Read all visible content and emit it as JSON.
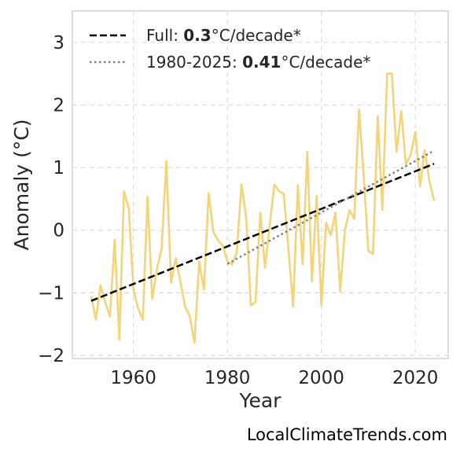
{
  "chart_data": {
    "type": "line",
    "title": "",
    "xlabel": "Year",
    "ylabel": "Anomaly (°C)",
    "xlim": [
      1947,
      2027
    ],
    "ylim": [
      -2.05,
      3.5
    ],
    "x_ticks": [
      1960,
      1980,
      2000,
      2020
    ],
    "y_ticks": [
      -2,
      -1,
      0,
      1,
      2,
      3
    ],
    "x_tick_labels": [
      "1960",
      "1980",
      "2000",
      "2020"
    ],
    "y_tick_labels": [
      "−2",
      "−1",
      "0",
      "1",
      "2",
      "3"
    ],
    "grid": true,
    "legend_position": "top-left",
    "credit": "LocalClimateTrends.com",
    "series": [
      {
        "role": "annual anomaly",
        "style": "solid",
        "color": "#f2d479",
        "x": [
          1951,
          1952,
          1953,
          1954,
          1955,
          1956,
          1957,
          1958,
          1959,
          1960,
          1961,
          1962,
          1963,
          1964,
          1965,
          1966,
          1967,
          1968,
          1969,
          1970,
          1971,
          1972,
          1973,
          1974,
          1975,
          1976,
          1977,
          1978,
          1979,
          1980,
          1981,
          1982,
          1983,
          1984,
          1985,
          1986,
          1987,
          1988,
          1989,
          1990,
          1991,
          1992,
          1993,
          1994,
          1995,
          1996,
          1997,
          1998,
          1999,
          2000,
          2001,
          2002,
          2003,
          2004,
          2005,
          2006,
          2007,
          2008,
          2009,
          2010,
          2011,
          2012,
          2013,
          2014,
          2015,
          2016,
          2017,
          2018,
          2019,
          2020,
          2021,
          2022,
          2023,
          2024
        ],
        "y": [
          -1.05,
          -1.43,
          -0.88,
          -1.15,
          -1.38,
          -0.15,
          -1.75,
          0.62,
          0.35,
          -0.95,
          -1.25,
          -1.43,
          0.53,
          -1.1,
          -0.62,
          -0.3,
          1.1,
          -0.84,
          -0.45,
          -0.82,
          -1.22,
          -1.38,
          -1.8,
          -0.5,
          -0.95,
          0.59,
          -0.03,
          -0.16,
          -0.25,
          -0.5,
          -0.55,
          -0.35,
          0.73,
          0.2,
          -1.2,
          -1.15,
          0.28,
          -0.6,
          0.08,
          0.73,
          0.62,
          0.58,
          -0.3,
          -1.22,
          0.72,
          -0.55,
          1.25,
          -0.82,
          0.55,
          -1.2,
          0.12,
          -0.08,
          0.28,
          -0.98,
          0.0,
          0.32,
          0.18,
          1.93,
          0.9,
          -0.33,
          -0.38,
          1.82,
          0.32,
          2.5,
          2.5,
          1.25,
          1.9,
          1.05,
          1.2,
          1.57,
          0.7,
          1.28,
          0.78,
          0.47
        ]
      },
      {
        "name": "Full: 0.3°C/decade*",
        "legend_prefix": "Full: ",
        "legend_value": "0.3",
        "legend_suffix": "°C/decade*",
        "style": "dashed",
        "color": "#000000",
        "x": [
          1951,
          2024
        ],
        "y": [
          -1.13,
          1.06
        ]
      },
      {
        "name": "1980-2025: 0.41°C/decade*",
        "legend_prefix": "1980-2025: ",
        "legend_value": "0.41",
        "legend_suffix": "°C/decade*",
        "style": "dotted",
        "color": "#808080",
        "x": [
          1980,
          2024
        ],
        "y": [
          -0.54,
          1.27
        ]
      }
    ]
  }
}
